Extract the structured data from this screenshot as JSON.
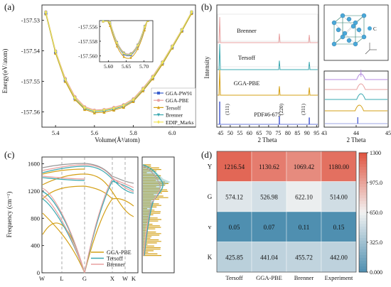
{
  "chart_data": [
    {
      "panel": "(a)",
      "type": "line",
      "xlabel": "Volume(Å³/atom)",
      "ylabel": "Energy(eV/atom)",
      "xlim": [
        5.33,
        6.12
      ],
      "ylim": [
        -157.565,
        -157.525
      ],
      "xticks": [
        "5.4",
        "5.6",
        "5.8",
        "6.0"
      ],
      "yticks": [
        "-157.53",
        "-157.54",
        "-157.55",
        "-157.56"
      ],
      "x": [
        5.35,
        5.4,
        5.45,
        5.5,
        5.55,
        5.6,
        5.65,
        5.7,
        5.75,
        5.8,
        5.85,
        5.9,
        5.95,
        6.0,
        6.05,
        6.1
      ],
      "series": [
        {
          "name": "GGA-PW91",
          "color": "#3a5fcd",
          "marker": "square",
          "values": [
            -157.5277,
            -157.5405,
            -157.5497,
            -157.5556,
            -157.5588,
            -157.5598,
            -157.5595,
            -157.559,
            -157.5581,
            -157.5562,
            -157.5527,
            -157.5488,
            -157.544,
            -157.5388,
            -157.5333,
            -157.5275
          ]
        },
        {
          "name": "GGA-PBE",
          "color": "#e8a0a0",
          "marker": "circle",
          "values": [
            -157.5272,
            -157.54,
            -157.549,
            -157.555,
            -157.5583,
            -157.5594,
            -157.5592,
            -157.5585,
            -157.5576,
            -157.5557,
            -157.5522,
            -157.5483,
            -157.5436,
            -157.5384,
            -157.533,
            -157.5272
          ]
        },
        {
          "name": "Tersoff",
          "color": "#d4a017",
          "marker": "triangle",
          "values": [
            -157.5279,
            -157.5408,
            -157.55,
            -157.556,
            -157.5592,
            -157.5603,
            -157.5601,
            -157.5594,
            -157.5585,
            -157.5566,
            -157.5531,
            -157.5492,
            -157.5444,
            -157.5391,
            -157.5336,
            -157.5278
          ]
        },
        {
          "name": "Brenner",
          "color": "#3aa8b0",
          "marker": "triangle-down",
          "values": [
            -157.5275,
            -157.5403,
            -157.5495,
            -157.5555,
            -157.5588,
            -157.5599,
            -157.5596,
            -157.559,
            -157.558,
            -157.5561,
            -157.5526,
            -157.5487,
            -157.5439,
            -157.5387,
            -157.5332,
            -157.5274
          ]
        },
        {
          "name": "EDIP_Marks",
          "color": "#f2e65a",
          "marker": "diamond",
          "values": [
            -157.5274,
            -157.5402,
            -157.5494,
            -157.5554,
            -157.5586,
            -157.5597,
            -157.5594,
            -157.5588,
            -157.5579,
            -157.556,
            -157.5525,
            -157.5486,
            -157.5438,
            -157.5386,
            -157.5331,
            -157.5273
          ]
        }
      ],
      "inset": {
        "xlim": [
          5.575,
          5.725
        ],
        "ylim": [
          -157.5608,
          -157.5552
        ],
        "xticks": [
          "5.60",
          "5.65",
          "5.70"
        ],
        "yticks": [
          "-157.556",
          "-157.558",
          "-157.560"
        ]
      }
    },
    {
      "panel": "(b)",
      "type": "line",
      "xlabel": "2 Theta",
      "ylabel": "Intensity",
      "xlim": [
        43,
        96
      ],
      "xticks": [
        "45",
        "50",
        "55",
        "60",
        "65",
        "70",
        "75",
        "80",
        "85",
        "90",
        "95"
      ],
      "series": [
        {
          "name": "Brenner",
          "color": "#e8a0a0",
          "peaks": [
            44.5,
            75.6,
            91.2
          ],
          "heights": [
            1.0,
            0.35,
            0.3
          ]
        },
        {
          "name": "Tersoff",
          "color": "#3aa8b0",
          "peaks": [
            44.5,
            75.6,
            91.2
          ],
          "heights": [
            1.0,
            0.35,
            0.3
          ]
        },
        {
          "name": "GGA-PBE",
          "color": "#d4a017",
          "peaks": [
            44.5,
            75.6,
            91.2
          ],
          "heights": [
            1.0,
            0.35,
            0.3
          ]
        },
        {
          "name": "PDF#6-675",
          "color": "#3a4fcd",
          "peaks": [
            44.5,
            75.6,
            91.2
          ],
          "heights": [
            1.0,
            0.35,
            0.3
          ]
        }
      ],
      "peak_labels": [
        "(111)",
        "(220)",
        "(311)"
      ],
      "inset": {
        "xlabel": "2 Theta",
        "xticks": [
          "43",
          "44",
          "45"
        ],
        "xlim": [
          43,
          45
        ],
        "peak_positions": [
          44.15,
          44.15,
          44.15,
          44.1,
          44.05
        ]
      },
      "structure_label": "C"
    },
    {
      "panel": "(c)",
      "type": "line",
      "ylabel": "Frequency (cm⁻¹)",
      "ylim": [
        0,
        1700
      ],
      "yticks": [
        "0",
        "400",
        "800",
        "1200",
        "1600"
      ],
      "xticks": [
        "W",
        "L",
        "G",
        "X",
        "W",
        "K"
      ],
      "series": [
        {
          "name": "GGA-PBE",
          "color": "#d4a017"
        },
        {
          "name": "Tersoff",
          "color": "#3aa8b0"
        },
        {
          "name": "Brenner",
          "color": "#e8a0a0"
        }
      ]
    },
    {
      "panel": "(d)",
      "type": "heatmap",
      "rows": [
        "Y",
        "G",
        "v",
        "K"
      ],
      "columns": [
        "Tersoff",
        "GGA-PBE",
        "Brenner",
        "Experiment"
      ],
      "values": [
        [
          "1216.54",
          "1130.62",
          "1069.42",
          "1180.00"
        ],
        [
          "574.12",
          "526.98",
          "622.10",
          "514.00"
        ],
        [
          "0.05",
          "0.07",
          "0.11",
          "0.15"
        ],
        [
          "425.85",
          "441.04",
          "455.72",
          "442.00"
        ]
      ],
      "cell_levels": [
        [
          1216.54,
          1130.62,
          1069.42,
          1180.0
        ],
        [
          574.12,
          526.98,
          622.1,
          514.0
        ],
        [
          0.05,
          0.07,
          0.11,
          0.15
        ],
        [
          425.85,
          441.04,
          455.72,
          442.0
        ]
      ],
      "colorbar_range": [
        0,
        1300
      ],
      "colorbar_ticks": [
        "1300",
        "975.0",
        "650.0",
        "325.0",
        "0.000"
      ],
      "colors": {
        "low": "#4f8fb0",
        "mid": "#f2f2f2",
        "high": "#e0533f"
      }
    }
  ]
}
